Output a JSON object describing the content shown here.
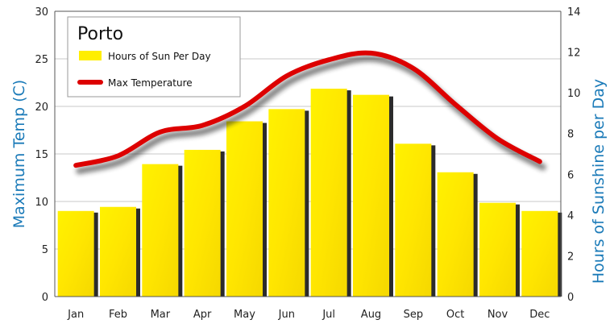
{
  "chart_data": {
    "type": "bar",
    "title": "Porto",
    "categories": [
      "Jan",
      "Feb",
      "Mar",
      "Apr",
      "May",
      "Jun",
      "Jul",
      "Aug",
      "Sep",
      "Oct",
      "Nov",
      "Dec"
    ],
    "series": [
      {
        "name": "Hours of Sun Per Day",
        "type": "bar",
        "axis": "right",
        "color": "#ffee00",
        "values": [
          4.2,
          4.4,
          6.5,
          7.2,
          8.6,
          9.2,
          10.2,
          9.9,
          7.5,
          6.1,
          4.6,
          4.2
        ]
      },
      {
        "name": "Max Temperature",
        "type": "line",
        "axis": "left",
        "color": "#dd0000",
        "values": [
          13.8,
          14.8,
          17.3,
          18.0,
          20.0,
          23.2,
          24.9,
          25.6,
          24.0,
          20.2,
          16.6,
          14.2
        ]
      }
    ],
    "ylabel_left": "Maximum Temp (C)",
    "ylabel_right": "Hours of Sunshine per Day",
    "ylim_left": [
      0,
      30
    ],
    "ylim_right": [
      0,
      14
    ],
    "yticks_left": [
      "0",
      "5",
      "10",
      "15",
      "20",
      "25",
      "30"
    ],
    "yticks_right": [
      "0",
      "2",
      "4",
      "6",
      "8",
      "10",
      "12",
      "14"
    ],
    "grid": true,
    "legend_position": "top-left"
  }
}
